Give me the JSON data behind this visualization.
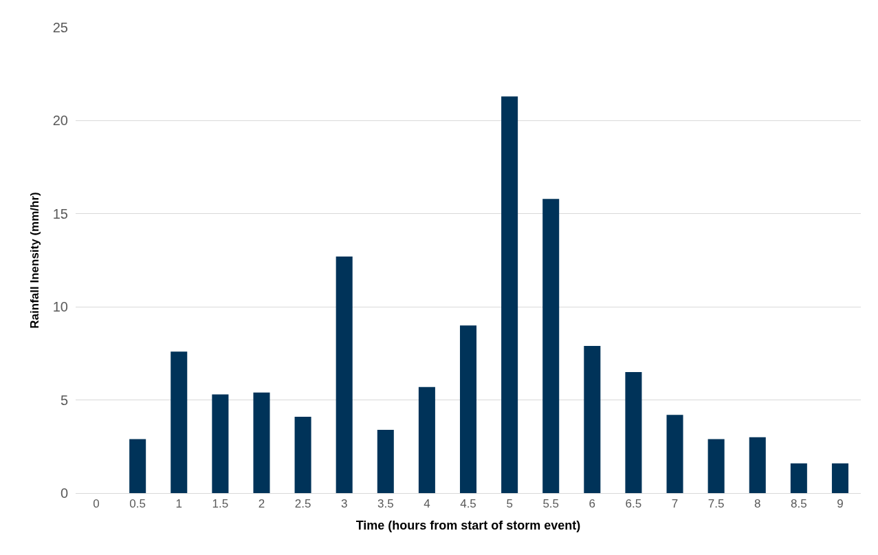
{
  "chart_data": {
    "type": "bar",
    "xlabel": "Time (hours from start of storm event)",
    "ylabel": "Rainfall Inensity (mm/hr)",
    "categories": [
      "0",
      "0.5",
      "1",
      "1.5",
      "2",
      "2.5",
      "3",
      "3.5",
      "4",
      "4.5",
      "5",
      "5.5",
      "6",
      "6.5",
      "7",
      "7.5",
      "8",
      "8.5",
      "9"
    ],
    "values": [
      0,
      2.9,
      7.6,
      5.3,
      5.4,
      4.1,
      12.7,
      3.4,
      5.7,
      9.0,
      21.3,
      15.8,
      7.9,
      6.5,
      4.2,
      2.9,
      3.0,
      1.6,
      1.6
    ],
    "color": "#003359",
    "ylim": [
      0,
      25
    ],
    "yticks": [
      0,
      5,
      10,
      15,
      20,
      25
    ],
    "grid": "y"
  }
}
